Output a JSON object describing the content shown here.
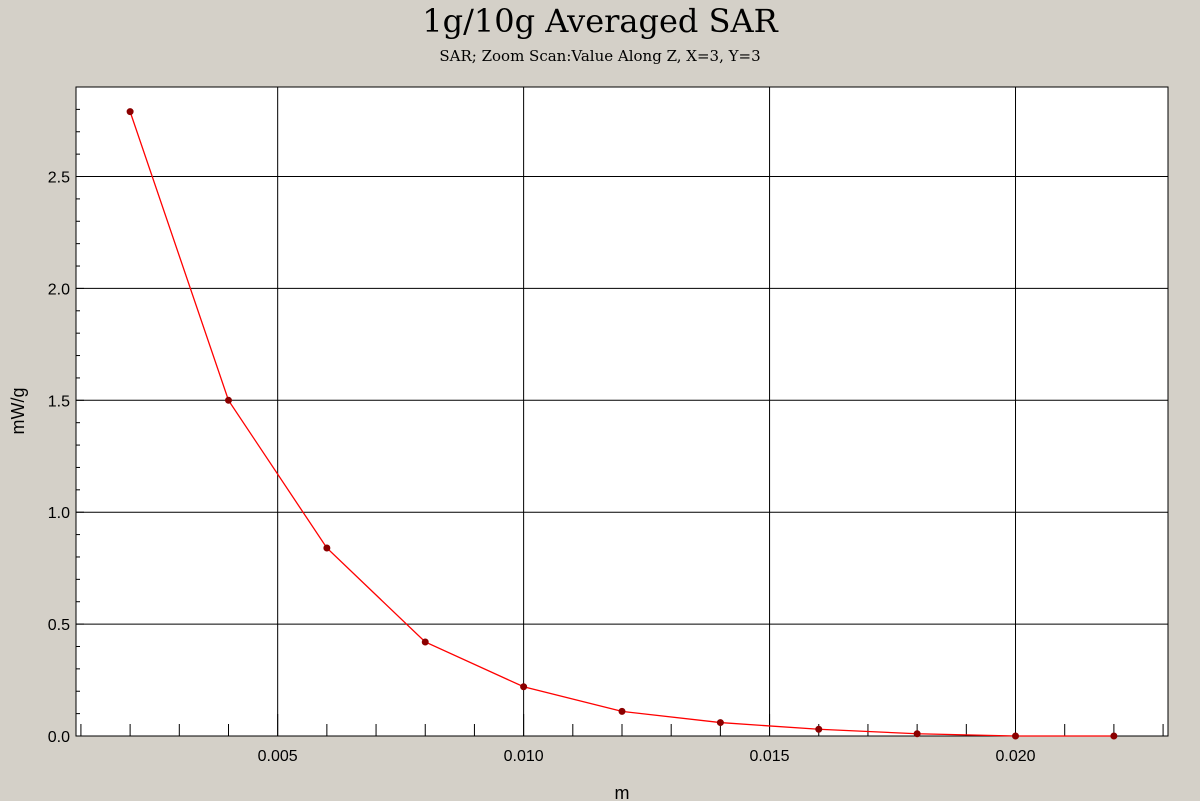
{
  "chart_data": {
    "type": "line",
    "title": "1g/10g Averaged SAR",
    "subtitle": "SAR; Zoom Scan:Value Along Z, X=3, Y=3",
    "xlabel": "m",
    "ylabel": "mW/g",
    "xlim": [
      0.0009,
      0.0231
    ],
    "ylim": [
      0.0,
      2.9
    ],
    "x_ticks": [
      0.005,
      0.01,
      0.015,
      0.02
    ],
    "x_tick_labels": [
      "0.005",
      "0.010",
      "0.015",
      "0.020"
    ],
    "y_ticks": [
      0.0,
      0.5,
      1.0,
      1.5,
      2.0,
      2.5
    ],
    "y_tick_labels": [
      "0.0",
      "0.5",
      "1.0",
      "1.5",
      "2.0",
      "2.5"
    ],
    "grid": true,
    "series": [
      {
        "color": "#ff0000",
        "marker_color": "#8b0000",
        "x": [
          0.002,
          0.004,
          0.006,
          0.008,
          0.01,
          0.012,
          0.014,
          0.016,
          0.018,
          0.02,
          0.022
        ],
        "y": [
          2.79,
          1.5,
          0.84,
          0.42,
          0.22,
          0.11,
          0.06,
          0.03,
          0.01,
          0.0,
          0.0
        ]
      }
    ]
  }
}
